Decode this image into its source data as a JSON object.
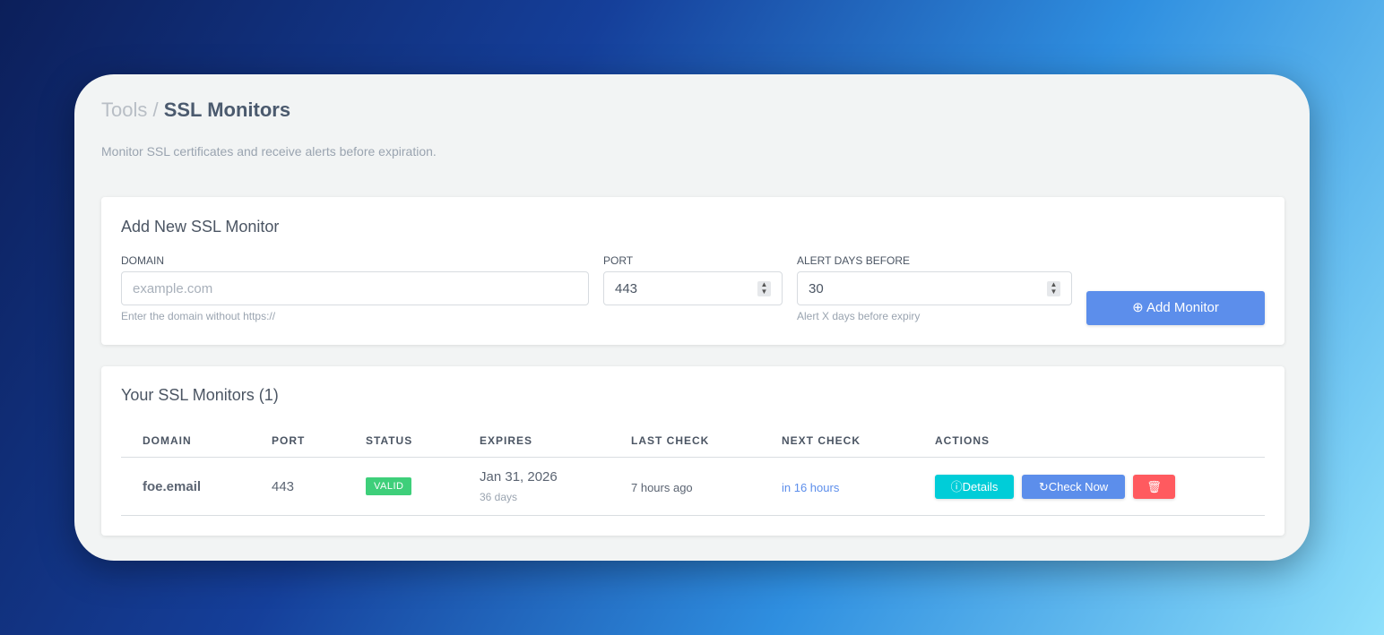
{
  "breadcrumb": {
    "parent": "Tools",
    "current": "SSL Monitors"
  },
  "subtitle": "Monitor SSL certificates and receive alerts before expiration.",
  "form": {
    "title": "Add New SSL Monitor",
    "domain_label": "DOMAIN",
    "domain_placeholder": "example.com",
    "domain_hint": "Enter the domain without https://",
    "port_label": "PORT",
    "port_value": "443",
    "alert_label": "ALERT DAYS BEFORE",
    "alert_value": "30",
    "alert_hint": "Alert X days before expiry",
    "submit": "Add Monitor"
  },
  "list": {
    "title": "Your SSL Monitors (1)",
    "headers": [
      "DOMAIN",
      "PORT",
      "STATUS",
      "EXPIRES",
      "LAST CHECK",
      "NEXT CHECK",
      "ACTIONS"
    ],
    "rows": [
      {
        "domain": "foe.email",
        "port": "443",
        "status": "VALID",
        "expires": "Jan 31, 2026",
        "expires_in": "36 days",
        "last_check": "7 hours ago",
        "next_check": "in 16 hours",
        "details": "Details",
        "check_now": "Check Now"
      }
    ]
  },
  "colors": {
    "valid": "#3ecf7a",
    "details": "#00cdd8",
    "check": "#5c8eeb",
    "delete": "#ff5a5f",
    "link": "#5c8eeb"
  }
}
